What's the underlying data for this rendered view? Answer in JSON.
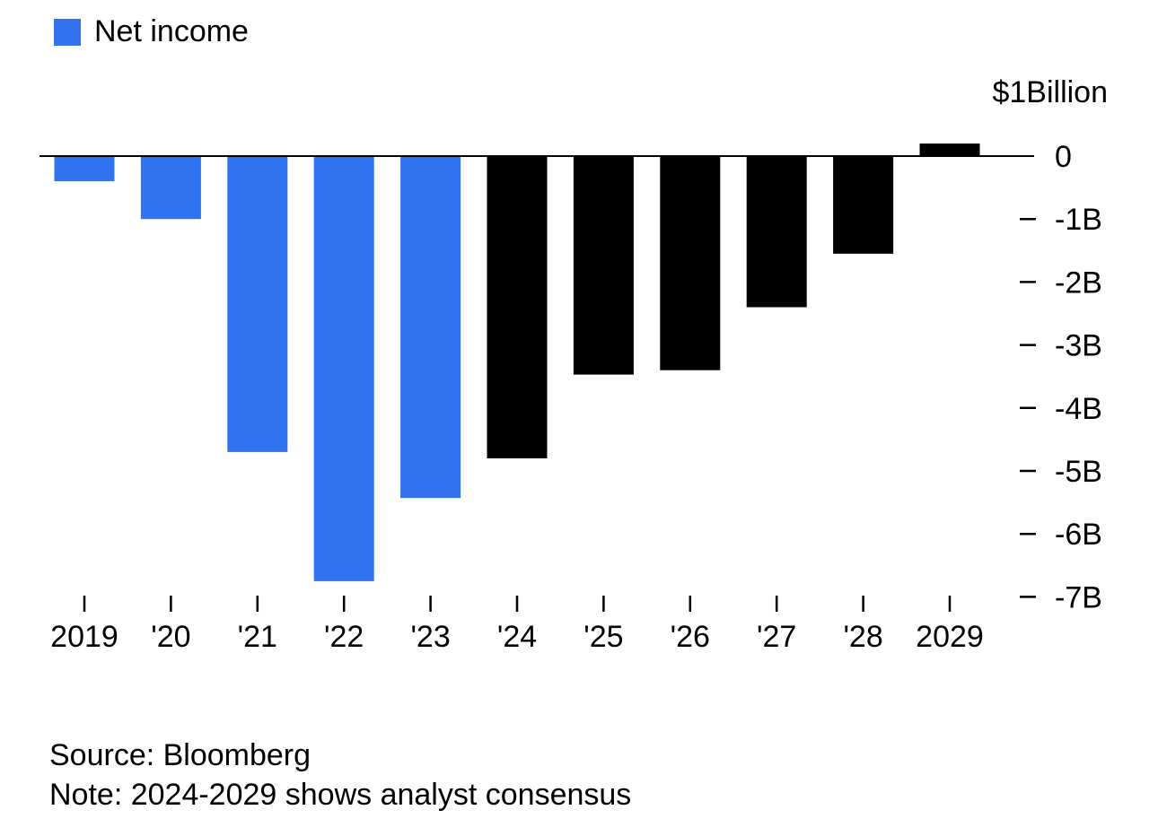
{
  "legend": {
    "label": "Net income",
    "color": "#3172ee"
  },
  "unit_label": "$1Billion",
  "footer": {
    "source": "Source: Bloomberg",
    "note": "Note: 2024-2029 shows analyst consensus"
  },
  "chart_data": {
    "type": "bar",
    "categories": [
      "2019",
      "'20",
      "'21",
      "'22",
      "'23",
      "'24",
      "'25",
      "'26",
      "'27",
      "'28",
      "2029"
    ],
    "series": [
      {
        "name": "Net income",
        "values": [
          -0.4,
          -1.0,
          -4.7,
          -6.75,
          -5.43,
          -4.8,
          -3.47,
          -3.4,
          -2.4,
          -1.55,
          0.2
        ]
      }
    ],
    "bar_colors": [
      "#3172ee",
      "#3172ee",
      "#3172ee",
      "#3172ee",
      "#3172ee",
      "#000000",
      "#000000",
      "#000000",
      "#000000",
      "#000000",
      "#000000"
    ],
    "y_ticks": [
      0,
      -1,
      -2,
      -3,
      -4,
      -5,
      -6,
      -7
    ],
    "y_tick_labels": [
      "0",
      "-1B",
      "-2B",
      "-3B",
      "-4B",
      "-5B",
      "-6B",
      "-7B"
    ],
    "ylim": [
      -7,
      0.3
    ],
    "y_axis_position": "right",
    "grid": false
  }
}
